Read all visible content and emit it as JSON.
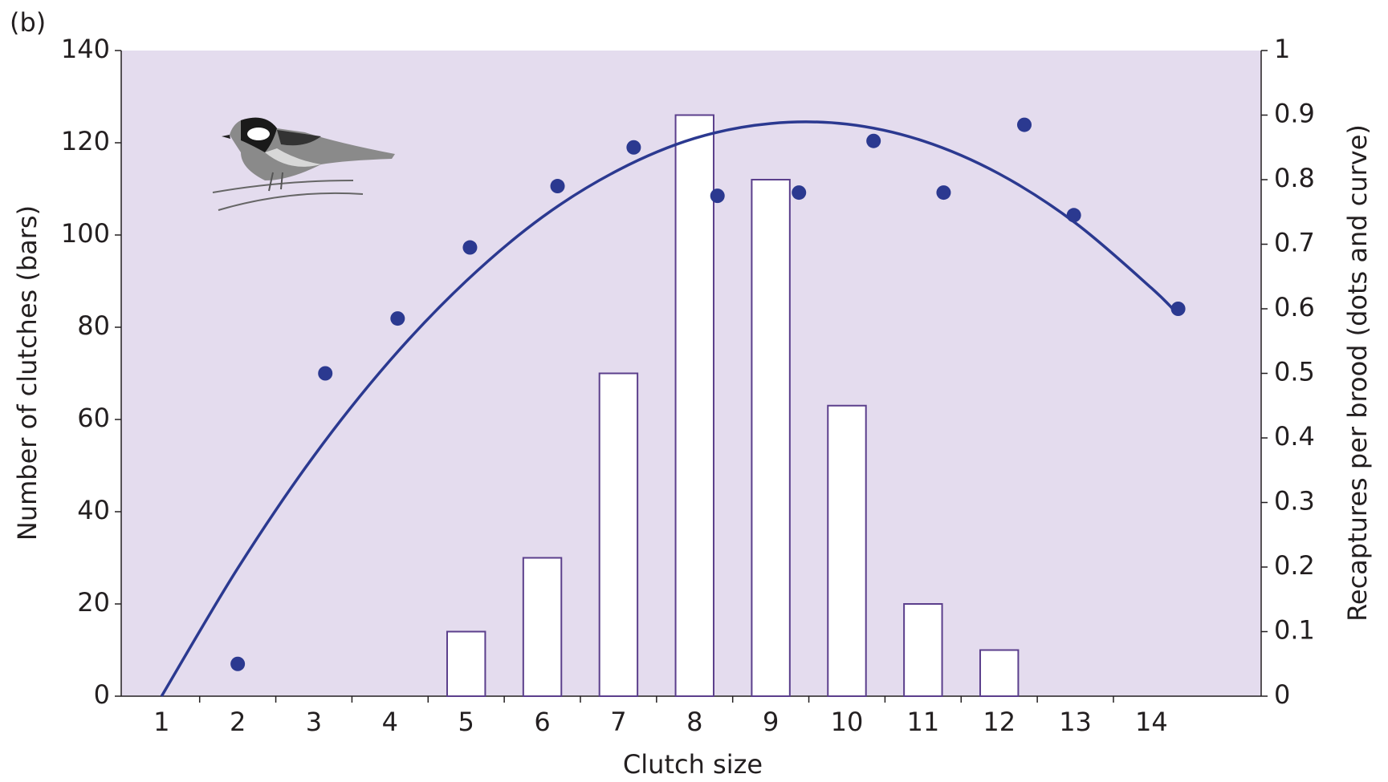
{
  "chart_data": {
    "type": "bar-scatter",
    "title": "(b)",
    "xlabel": "Clutch size",
    "ylabel": "Number of clutches (bars)",
    "y2label": "Recaptures per brood (dots and curve)",
    "xlim": [
      0.47,
      15.44
    ],
    "xticks": [
      1,
      2,
      3,
      4,
      5,
      6,
      7,
      8,
      9,
      10,
      11,
      12,
      13,
      14
    ],
    "ylim": [
      0,
      140
    ],
    "yticks": [
      0,
      20,
      40,
      60,
      80,
      100,
      120,
      140
    ],
    "y2lim": [
      0,
      1
    ],
    "y2ticks": [
      0,
      0.1,
      0.2,
      0.3,
      0.4,
      0.5,
      0.6,
      0.7,
      0.8,
      0.9,
      1
    ],
    "background": "#e4dcee",
    "bars": {
      "color": "#ffffff",
      "edgecolor": "#5b3f8c",
      "x": [
        5,
        6,
        7,
        8,
        9,
        10,
        11,
        12
      ],
      "values": [
        14,
        30,
        70,
        126,
        112,
        63,
        20,
        10
      ]
    },
    "dots": {
      "color": "#2b3990",
      "axis": "y2",
      "x": [
        2,
        3.15,
        4.1,
        5.05,
        6.2,
        7.2,
        8.3,
        9.37,
        10.35,
        11.27,
        12.33,
        12.98,
        14.35
      ],
      "values": [
        0.05,
        0.5,
        0.585,
        0.695,
        0.79,
        0.85,
        0.775,
        0.78,
        0.86,
        0.78,
        0.885,
        0.745,
        0.6
      ]
    },
    "curve": {
      "color": "#2b3990",
      "axis": "y2",
      "x": [
        1,
        2,
        3,
        4,
        5,
        6,
        7,
        8,
        9,
        10,
        11,
        12,
        13,
        14,
        14.35
      ],
      "values": [
        0,
        0.198,
        0.372,
        0.52,
        0.643,
        0.742,
        0.815,
        0.864,
        0.887,
        0.886,
        0.86,
        0.809,
        0.733,
        0.632,
        0.591
      ]
    }
  }
}
